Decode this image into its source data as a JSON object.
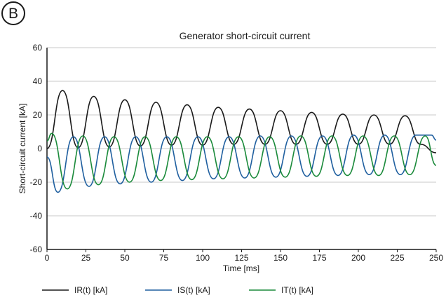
{
  "panel_label": "B",
  "chart_data": {
    "type": "line",
    "title": "Generator short-circuit current",
    "xlabel": "Time [ms]",
    "ylabel": "Short-circuit current [kA]",
    "xlim": [
      0,
      250
    ],
    "ylim": [
      -60,
      60
    ],
    "x_ticks": [
      0,
      25,
      50,
      75,
      100,
      125,
      150,
      175,
      200,
      225,
      250
    ],
    "y_ticks": [
      -60,
      -40,
      -20,
      0,
      20,
      40,
      60
    ],
    "grid": "horizontal",
    "legend_position": "bottom",
    "series": [
      {
        "name": "IR(t) [kA]",
        "color": "#1a1a1a",
        "x": [
          0,
          10,
          20,
          30,
          40,
          50,
          60,
          70,
          80,
          90,
          100,
          110,
          120,
          130,
          140,
          150,
          160,
          170,
          180,
          190,
          200,
          210,
          220,
          230,
          240,
          250
        ],
        "values": [
          0,
          34.5,
          0.5,
          31,
          1,
          29,
          1.5,
          27.5,
          2,
          26,
          2,
          24.5,
          2.5,
          23.5,
          2.5,
          22.5,
          2.5,
          21.5,
          2.5,
          20.5,
          2.5,
          20,
          2.5,
          19.5,
          2.5,
          -2.5
        ]
      },
      {
        "name": "IS(t) [kA]",
        "color": "#1f5f9f",
        "x": [
          0,
          7,
          17,
          27,
          37,
          47,
          57,
          67,
          77,
          87,
          97,
          107,
          117,
          127,
          137,
          147,
          157,
          167,
          177,
          187,
          197,
          207,
          217,
          227,
          237,
          247,
          250
        ],
        "values": [
          -5,
          -26,
          7,
          -22.5,
          7,
          -21,
          7,
          -20,
          7,
          -19,
          7,
          -18,
          7,
          -17.5,
          7.5,
          -17,
          7.5,
          -16.5,
          7.5,
          -16,
          8,
          -15.5,
          8,
          -15.5,
          8,
          8,
          5
        ]
      },
      {
        "name": "IT(t) [kA]",
        "color": "#1a8a3a",
        "x": [
          0,
          3,
          13,
          23,
          33,
          43,
          53,
          63,
          73,
          83,
          93,
          103,
          113,
          123,
          133,
          143,
          153,
          163,
          173,
          183,
          193,
          203,
          213,
          223,
          233,
          243,
          250
        ],
        "values": [
          4.5,
          9,
          -24,
          7.5,
          -21.5,
          7,
          -20,
          7,
          -19,
          7,
          -18.5,
          7,
          -18,
          7,
          -17.5,
          7,
          -17,
          7.5,
          -16.5,
          7.5,
          -16,
          7.5,
          -16,
          7.5,
          -15.5,
          7.5,
          -10
        ]
      }
    ]
  }
}
